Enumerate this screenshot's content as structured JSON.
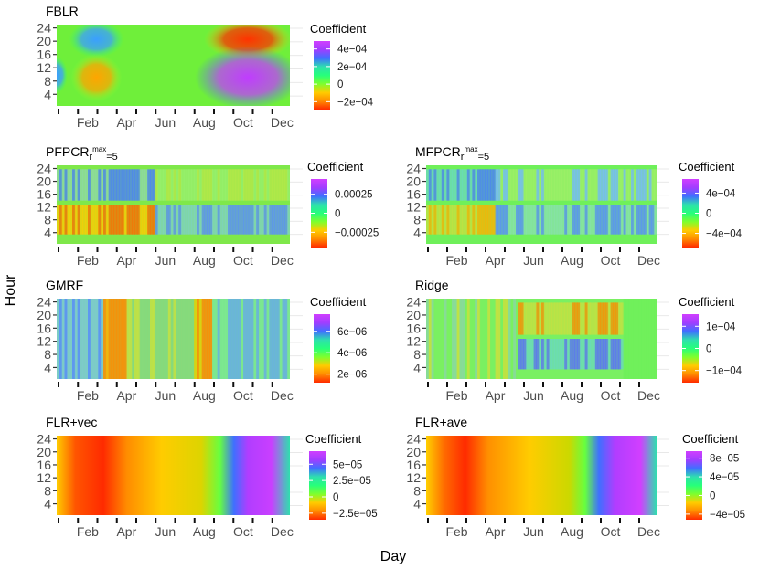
{
  "colors": {
    "scale": [
      "#ff2a00",
      "#ff8c00",
      "#ffcc00",
      "#7dff2e",
      "#26ff7a",
      "#2ee0ae",
      "#3f6fff",
      "#a23dff",
      "#d13fff"
    ]
  },
  "xlabel": "Day",
  "ylabel": "Hour",
  "chart_data": [
    {
      "type": "heatmap",
      "id": "fblr",
      "title": "FBLR",
      "x_ticks": [
        "Feb",
        "Apr",
        "Jun",
        "Aug",
        "Oct",
        "Dec"
      ],
      "y_ticks": [
        "4",
        "8",
        "12",
        "16",
        "20",
        "24"
      ],
      "legend_title": "Coefficient",
      "legend_labels": [
        "4e−04",
        "2e−04",
        "0",
        "−2e−04"
      ],
      "legend_range": [
        -0.00029,
        0.00049
      ],
      "legend_values": [
        0.0004,
        0.0002,
        0,
        -0.0002
      ],
      "grid": true
    },
    {
      "type": "heatmap",
      "id": "pfpcr",
      "title": "PFPCR",
      "title_sub": "r",
      "title_subsup": "max",
      "title_tail": "=5",
      "x_ticks": [
        "Feb",
        "Apr",
        "Jun",
        "Aug",
        "Oct",
        "Dec"
      ],
      "y_ticks": [
        "4",
        "8",
        "12",
        "16",
        "20",
        "24"
      ],
      "legend_title": "Coefficient",
      "legend_labels": [
        "0.00025",
        "0",
        "−0.00025"
      ],
      "legend_range": [
        -0.00045,
        0.00045
      ],
      "legend_values": [
        0.00025,
        0,
        -0.00025
      ],
      "grid": true
    },
    {
      "type": "heatmap",
      "id": "mfpcr",
      "title": "MFPCR",
      "title_sub": "r",
      "title_subsup": "max",
      "title_tail": "=5",
      "x_ticks": [
        "Feb",
        "Apr",
        "Jun",
        "Aug",
        "Oct",
        "Dec"
      ],
      "y_ticks": [
        "4",
        "8",
        "12",
        "16",
        "20",
        "24"
      ],
      "legend_title": "Coefficient",
      "legend_labels": [
        "4e−04",
        "0",
        "−4e−04"
      ],
      "legend_range": [
        -0.00068,
        0.00068
      ],
      "legend_values": [
        0.0004,
        0,
        -0.0004
      ],
      "grid": true
    },
    {
      "type": "heatmap",
      "id": "gmrf",
      "title": "GMRF",
      "x_ticks": [
        "Feb",
        "Apr",
        "Jun",
        "Aug",
        "Oct",
        "Dec"
      ],
      "y_ticks": [
        "4",
        "8",
        "12",
        "16",
        "20",
        "24"
      ],
      "legend_title": "Coefficient",
      "legend_labels": [
        "6e−06",
        "4e−06",
        "2e−06"
      ],
      "legend_range": [
        1.2e-06,
        7.6e-06
      ],
      "legend_values": [
        6e-06,
        4e-06,
        2e-06
      ],
      "grid": true
    },
    {
      "type": "heatmap",
      "id": "ridge",
      "title": "Ridge",
      "x_ticks": [
        "Feb",
        "Apr",
        "Jun",
        "Aug",
        "Oct",
        "Dec"
      ],
      "y_ticks": [
        "4",
        "8",
        "12",
        "16",
        "20",
        "24"
      ],
      "legend_title": "Coefficient",
      "legend_labels": [
        "1e−04",
        "0",
        "−1e−04"
      ],
      "legend_range": [
        -0.000155,
        0.000155
      ],
      "legend_values": [
        0.0001,
        0,
        -0.0001
      ],
      "grid": true
    },
    {
      "type": "heatmap",
      "id": "flrvec",
      "title": "FLR+vec",
      "x_ticks": [
        "Feb",
        "Apr",
        "Jun",
        "Aug",
        "Oct",
        "Dec"
      ],
      "y_ticks": [
        "4",
        "8",
        "12",
        "16",
        "20",
        "24"
      ],
      "legend_title": "Coefficient",
      "legend_labels": [
        "5e−05",
        "2.5e−05",
        "0",
        "−2.5e−05"
      ],
      "legend_range": [
        -3.5e-05,
        7e-05
      ],
      "legend_values": [
        5e-05,
        2.5e-05,
        0,
        -2.5e-05
      ],
      "grid": true
    },
    {
      "type": "heatmap",
      "id": "flrave",
      "title": "FLR+ave",
      "x_ticks": [
        "Feb",
        "Apr",
        "Jun",
        "Aug",
        "Oct",
        "Dec"
      ],
      "y_ticks": [
        "4",
        "8",
        "12",
        "16",
        "20",
        "24"
      ],
      "legend_title": "Coefficient",
      "legend_labels": [
        "8e−05",
        "4e−05",
        "0",
        "−4e−05"
      ],
      "legend_range": [
        -5.2e-05,
        9.5e-05
      ],
      "legend_values": [
        8e-05,
        4e-05,
        0,
        -4e-05
      ],
      "grid": true
    }
  ]
}
